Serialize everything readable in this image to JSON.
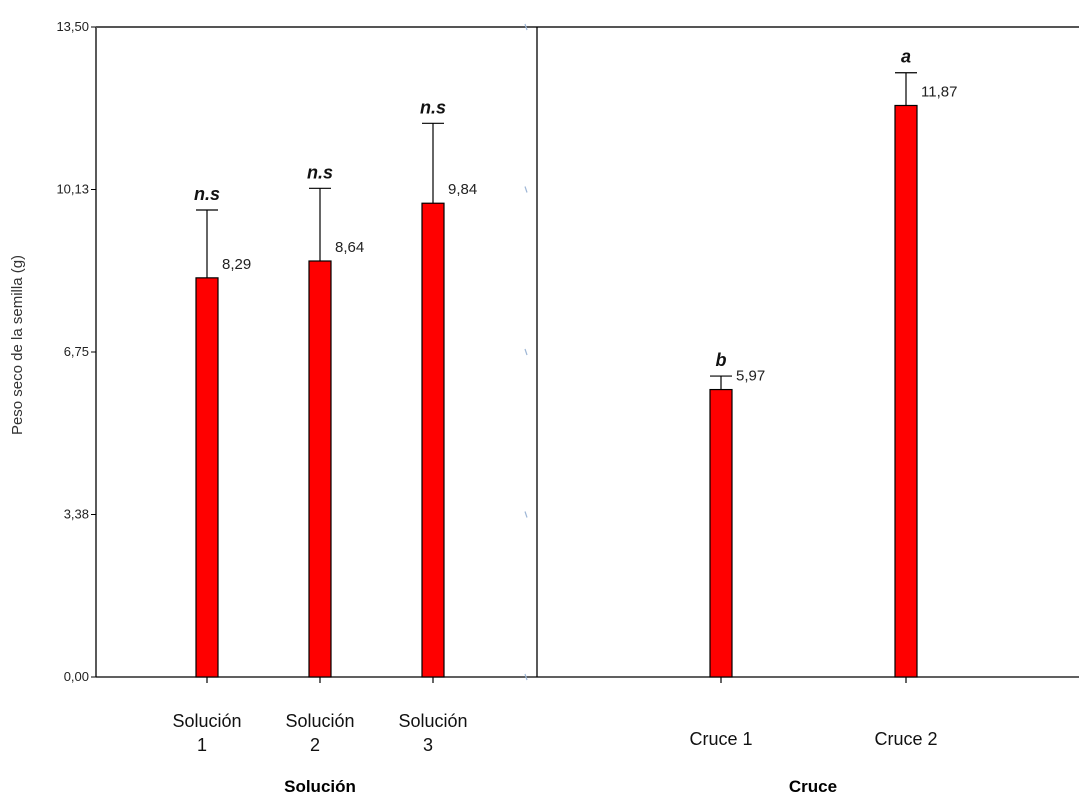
{
  "chart_data": {
    "type": "bar",
    "ylabel": "Peso seco de la semilla (g)",
    "ylim": [
      0,
      13.5
    ],
    "yticks": [
      "0,00",
      "3,38",
      "6,75",
      "10,13",
      "13,50"
    ],
    "bar_color": "#ff0000",
    "panels": [
      {
        "group_label": "Solución",
        "categories": [
          [
            "Solución",
            "1"
          ],
          [
            "Solución",
            "2"
          ],
          [
            "Solución",
            "3"
          ]
        ],
        "values": [
          8.29,
          8.64,
          9.84
        ],
        "value_labels": [
          "8,29",
          "8,64",
          "9,84"
        ],
        "error_upper": [
          9.7,
          10.15,
          11.5
        ],
        "significance": [
          "n.s",
          "n.s",
          "n.s"
        ]
      },
      {
        "group_label": "Cruce",
        "categories": [
          [
            "Cruce 1"
          ],
          [
            "Cruce 2"
          ]
        ],
        "values": [
          5.97,
          11.87
        ],
        "value_labels": [
          "5,97",
          "11,87"
        ],
        "error_upper": [
          6.25,
          12.55
        ],
        "significance": [
          "b",
          "a"
        ]
      }
    ]
  }
}
